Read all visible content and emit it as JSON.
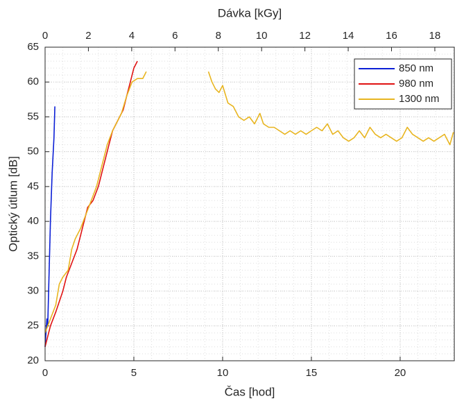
{
  "chart_data": {
    "type": "line",
    "xlabel": "Čas [hod]",
    "ylabel": "Optický útlum [dB]",
    "x2label": "Dávka [kGy]",
    "xlim": [
      0,
      23.05
    ],
    "xticks": [
      0,
      5,
      10,
      15,
      20
    ],
    "x2lim": [
      0,
      18.9
    ],
    "x2ticks": [
      0,
      2,
      4,
      6,
      8,
      10,
      12,
      14,
      16,
      18
    ],
    "ylim": [
      20,
      65
    ],
    "yticks": [
      20,
      25,
      30,
      35,
      40,
      45,
      50,
      55,
      60,
      65
    ],
    "grid": true,
    "minor_grid": true,
    "legend": "northeast",
    "series": [
      {
        "name": "850 nm",
        "color": "#0b1fd6",
        "x": [
          0,
          0.05,
          0.1,
          0.15,
          0.2,
          0.3,
          0.4,
          0.5,
          0.55
        ],
        "values": [
          22,
          24,
          26,
          25,
          30,
          40,
          47,
          52,
          56.5
        ]
      },
      {
        "name": "980 nm",
        "color": "#e01212",
        "x": [
          0,
          0.3,
          0.6,
          1,
          1.2,
          1.5,
          1.8,
          2,
          2.2,
          2.4,
          2.7,
          3,
          3.2,
          3.4,
          3.6,
          3.8,
          4,
          4.2,
          4.4,
          4.6,
          4.8,
          5,
          5.2
        ],
        "values": [
          22,
          25,
          27,
          30,
          32,
          34,
          36,
          38,
          40,
          42,
          43,
          45,
          47,
          49,
          51,
          53,
          54,
          55,
          56,
          58,
          60,
          62,
          63
        ]
      },
      {
        "name": "1300 nm",
        "color": "#e8b520",
        "x": [
          0,
          0.3,
          0.6,
          0.8,
          1,
          1.3,
          1.5,
          1.7,
          2,
          2.3,
          2.6,
          2.9,
          3.2,
          3.5,
          3.8,
          4,
          4.3,
          4.6,
          4.9,
          5.2,
          5.5,
          5.7,
          7.5,
          9.2,
          9.4,
          9.6,
          9.8,
          10,
          10.3,
          10.6,
          10.9,
          11.2,
          11.5,
          11.8,
          12.1,
          12.3,
          12.6,
          12.9,
          13.2,
          13.5,
          13.8,
          14.1,
          14.4,
          14.7,
          15,
          15.3,
          15.6,
          15.9,
          16.2,
          16.5,
          16.8,
          17.1,
          17.4,
          17.7,
          18,
          18.3,
          18.6,
          18.9,
          19.2,
          19.5,
          19.8,
          20.1,
          20.4,
          20.7,
          21,
          21.3,
          21.6,
          21.9,
          22.2,
          22.5,
          22.8,
          23
        ],
        "values": [
          24,
          26,
          28,
          31,
          32,
          33,
          36,
          37.5,
          39,
          41,
          43,
          45,
          48,
          51,
          53,
          54,
          55.5,
          58,
          60,
          60.5,
          60.5,
          61.5,
          null,
          61.5,
          60,
          59,
          58.5,
          59.5,
          57,
          56.5,
          55,
          54.5,
          55,
          54,
          55.5,
          54,
          53.5,
          53.5,
          53,
          52.5,
          53,
          52.5,
          53,
          52.5,
          53,
          53.5,
          53,
          54,
          52.5,
          53,
          52,
          51.5,
          52,
          53,
          52,
          53.5,
          52.5,
          52,
          52.5,
          52,
          51.5,
          52,
          53.5,
          52.5,
          52,
          51.5,
          52,
          51.5,
          52,
          52.5,
          51,
          52.8
        ]
      }
    ]
  }
}
